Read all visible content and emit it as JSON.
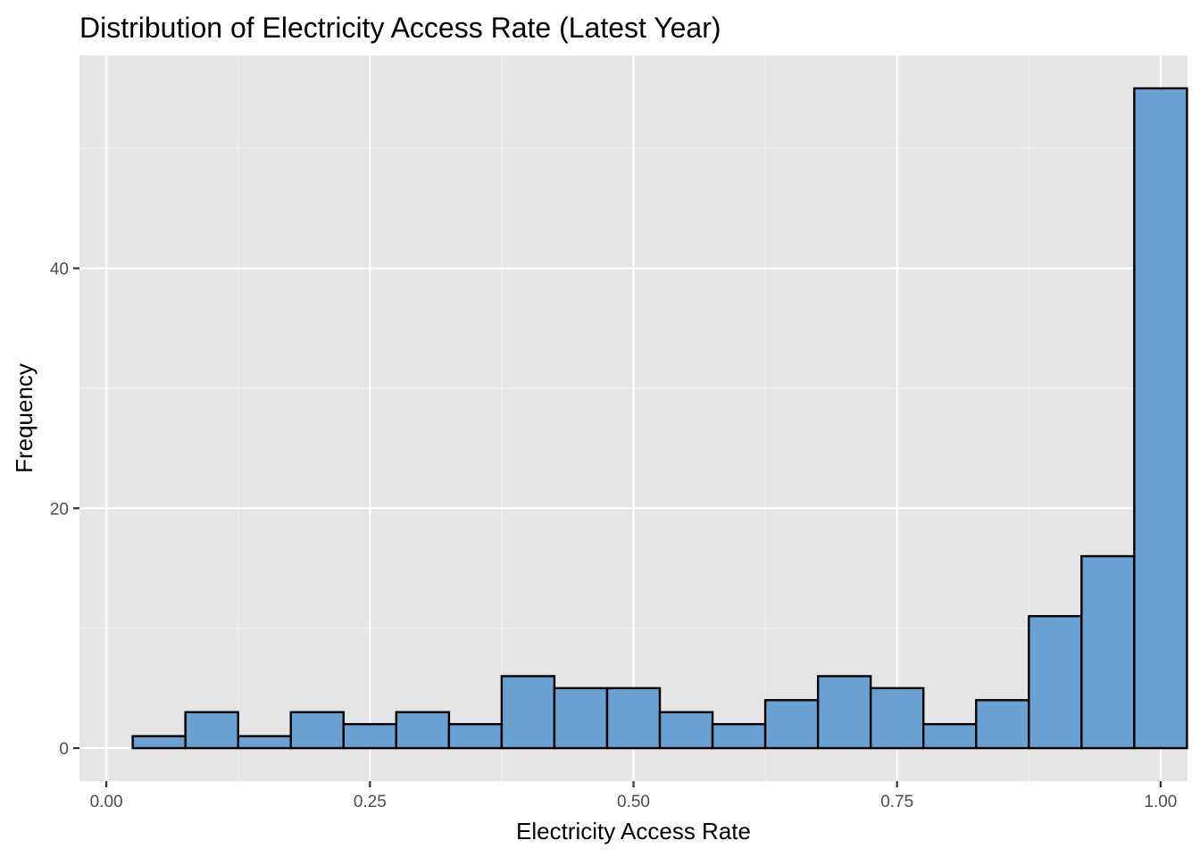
{
  "chart_data": {
    "type": "bar",
    "title": "Distribution of Electricity Access Rate (Latest Year)",
    "xlabel": "Electricity Access Rate",
    "ylabel": "Frequency",
    "xlim": [
      -0.0255,
      1.0255
    ],
    "ylim": [
      -2.75,
      57.75
    ],
    "x_ticks": [
      0,
      0.25,
      0.5,
      0.75,
      1
    ],
    "x_tick_labels": [
      "0.00",
      "0.25",
      "0.50",
      "0.75",
      "1.00"
    ],
    "y_ticks": [
      0,
      20,
      40
    ],
    "y_tick_labels": [
      "0",
      "20",
      "40"
    ],
    "bin_width": 0.05,
    "bins": [
      {
        "x_start": 0.025,
        "x_end": 0.075,
        "count": 1
      },
      {
        "x_start": 0.075,
        "x_end": 0.125,
        "count": 3
      },
      {
        "x_start": 0.125,
        "x_end": 0.175,
        "count": 1
      },
      {
        "x_start": 0.175,
        "x_end": 0.225,
        "count": 3
      },
      {
        "x_start": 0.225,
        "x_end": 0.275,
        "count": 2
      },
      {
        "x_start": 0.275,
        "x_end": 0.325,
        "count": 3
      },
      {
        "x_start": 0.325,
        "x_end": 0.375,
        "count": 2
      },
      {
        "x_start": 0.375,
        "x_end": 0.425,
        "count": 6
      },
      {
        "x_start": 0.425,
        "x_end": 0.475,
        "count": 5
      },
      {
        "x_start": 0.475,
        "x_end": 0.525,
        "count": 5
      },
      {
        "x_start": 0.525,
        "x_end": 0.575,
        "count": 3
      },
      {
        "x_start": 0.575,
        "x_end": 0.625,
        "count": 2
      },
      {
        "x_start": 0.625,
        "x_end": 0.675,
        "count": 4
      },
      {
        "x_start": 0.675,
        "x_end": 0.725,
        "count": 6
      },
      {
        "x_start": 0.725,
        "x_end": 0.775,
        "count": 5
      },
      {
        "x_start": 0.775,
        "x_end": 0.825,
        "count": 2
      },
      {
        "x_start": 0.825,
        "x_end": 0.875,
        "count": 4
      },
      {
        "x_start": 0.875,
        "x_end": 0.925,
        "count": 11
      },
      {
        "x_start": 0.925,
        "x_end": 0.975,
        "count": 16
      },
      {
        "x_start": 0.975,
        "x_end": 1.025,
        "count": 55
      }
    ],
    "grid": true,
    "legend": "none",
    "colors": {
      "bar_fill": "#6aa0d2",
      "bar_stroke": "#000000",
      "panel_background": "#e5e5e5",
      "grid_major": "#ffffff",
      "grid_minor": "#f2f2f2",
      "tick_text": "#4d4d4d",
      "tick_mark": "#333333"
    }
  }
}
